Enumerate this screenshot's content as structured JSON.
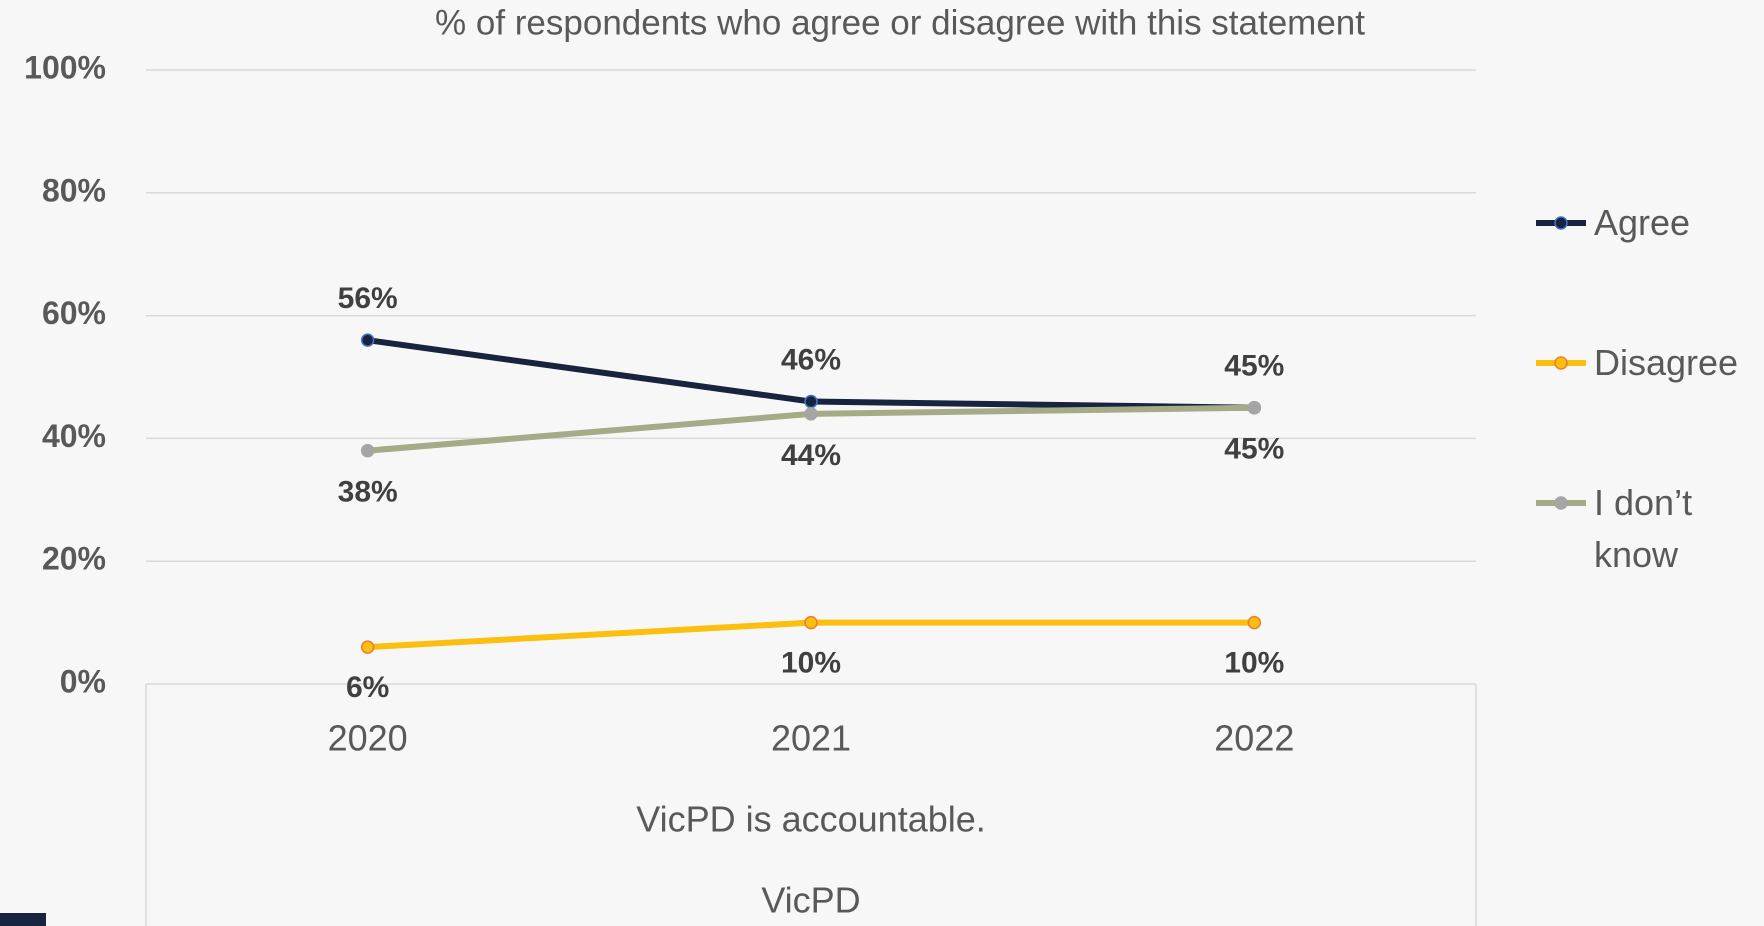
{
  "chart_data": {
    "type": "line",
    "title": "% of respondents who agree or disagree with this statement",
    "x_label": "VicPD is accountable.",
    "x_label_2": "VicPD",
    "categories": [
      "2020",
      "2021",
      "2022"
    ],
    "series": [
      {
        "name": "Agree",
        "color": "#17243f",
        "values": [
          56,
          46,
          45
        ],
        "value_labels": [
          "56%",
          "46%",
          "45%"
        ]
      },
      {
        "name": "Disagree",
        "color": "#fbbf10",
        "values": [
          6,
          10,
          10
        ],
        "value_labels": [
          "6%",
          "10%",
          "10%"
        ]
      },
      {
        "name": "I don’t know",
        "color": "#a4ab86",
        "values": [
          38,
          44,
          45
        ],
        "value_labels": [
          "38%",
          "44%",
          "45%"
        ]
      }
    ],
    "ylim": [
      0,
      100
    ],
    "yticks": [
      {
        "value": 0,
        "label": "0%"
      },
      {
        "value": 20,
        "label": "20%"
      },
      {
        "value": 40,
        "label": "40%"
      },
      {
        "value": 60,
        "label": "60%"
      },
      {
        "value": 80,
        "label": "80%"
      },
      {
        "value": 100,
        "label": "100%"
      }
    ],
    "grid": true,
    "legend": "right"
  }
}
